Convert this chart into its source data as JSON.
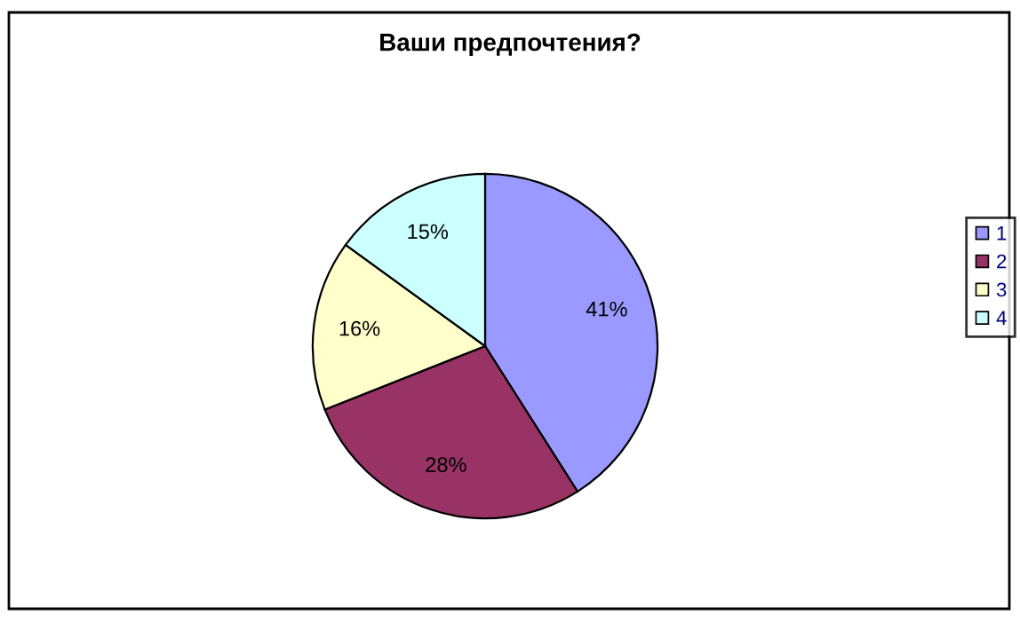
{
  "chart_data": {
    "type": "pie",
    "title": "Ваши предпочтения?",
    "categories": [
      "1",
      "2",
      "3",
      "4"
    ],
    "values": [
      41,
      28,
      16,
      15
    ],
    "colors": [
      "#9999ff",
      "#993366",
      "#ffffcc",
      "#ccffff"
    ],
    "value_labels": [
      "41%",
      "28%",
      "16%",
      "15%"
    ],
    "legend": "right"
  }
}
